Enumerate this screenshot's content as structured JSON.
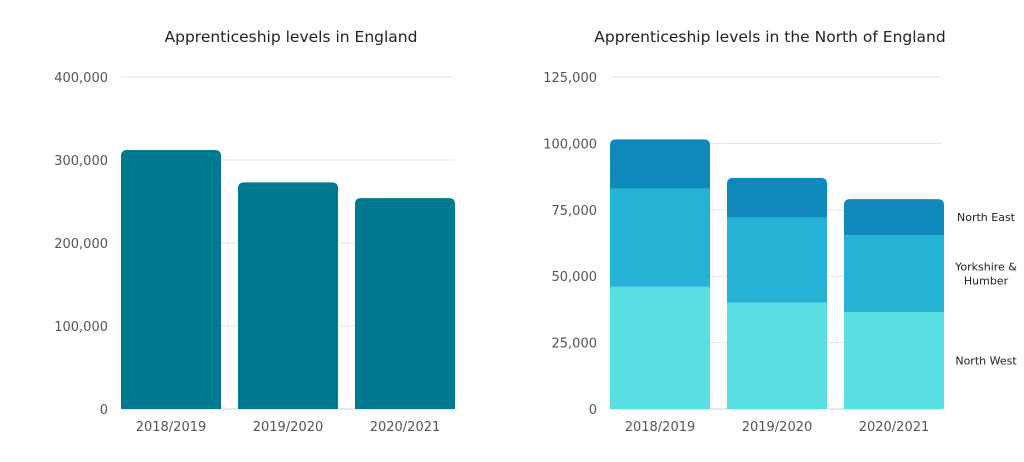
{
  "chart_data": [
    {
      "type": "bar",
      "title": "Apprenticeship levels in England",
      "xlabel": "",
      "ylabel": "",
      "categories": [
        "2018/2019",
        "2019/2020",
        "2020/2021"
      ],
      "ylim": [
        0,
        400000
      ],
      "yticks": [
        "0",
        "100,000",
        "200,000",
        "300,000",
        "400,000"
      ],
      "series": [
        {
          "values": [
            312000,
            273000,
            254000
          ],
          "color": "#017a91"
        }
      ],
      "grid": true,
      "legend": "none"
    },
    {
      "type": "bar",
      "stacked": true,
      "title": "Apprenticeship levels in the North of England",
      "xlabel": "",
      "ylabel": "",
      "categories": [
        "2018/2019",
        "2019/2020",
        "2020/2021"
      ],
      "ylim": [
        0,
        125000
      ],
      "yticks": [
        "0",
        "25,000",
        "50,000",
        "75,000",
        "100,000",
        "125,000"
      ],
      "series": [
        {
          "name": "North West",
          "values": [
            46000,
            40000,
            36500
          ],
          "color": "#5ae0e3"
        },
        {
          "name": "Yorkshire & Humber",
          "values": [
            37000,
            32000,
            29000
          ],
          "color": "#24b3d5"
        },
        {
          "name": "North East",
          "values": [
            18500,
            15000,
            13500
          ],
          "color": "#0f89bb"
        }
      ],
      "grid": true,
      "legend": "right"
    }
  ]
}
